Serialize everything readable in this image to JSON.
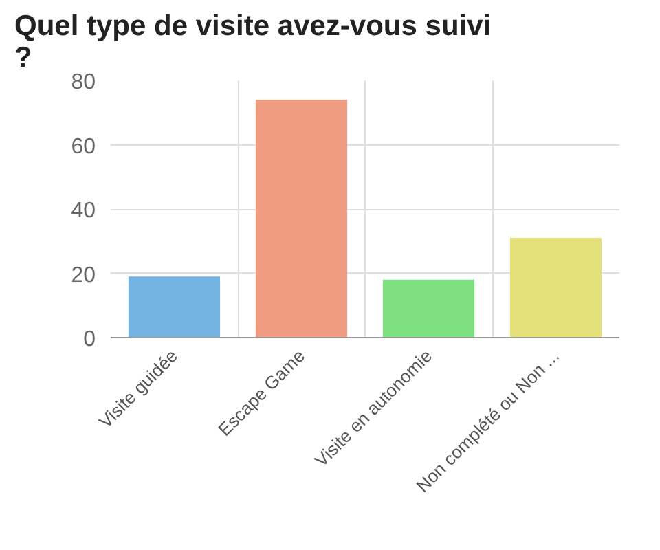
{
  "chart_data": {
    "type": "bar",
    "title": "Quel type de visite avez-vous suivi ?",
    "categories": [
      "Visite guidée",
      "Escape Game",
      "Visite en autonomie",
      "Non complété ou Non ..."
    ],
    "values": [
      19,
      74,
      18,
      31
    ],
    "colors": [
      "#74b3e2",
      "#ef9c82",
      "#7ddf7d",
      "#e3e07a"
    ],
    "ylim": [
      0,
      80
    ],
    "yticks": [
      0,
      20,
      40,
      60,
      80
    ],
    "grid": true
  }
}
